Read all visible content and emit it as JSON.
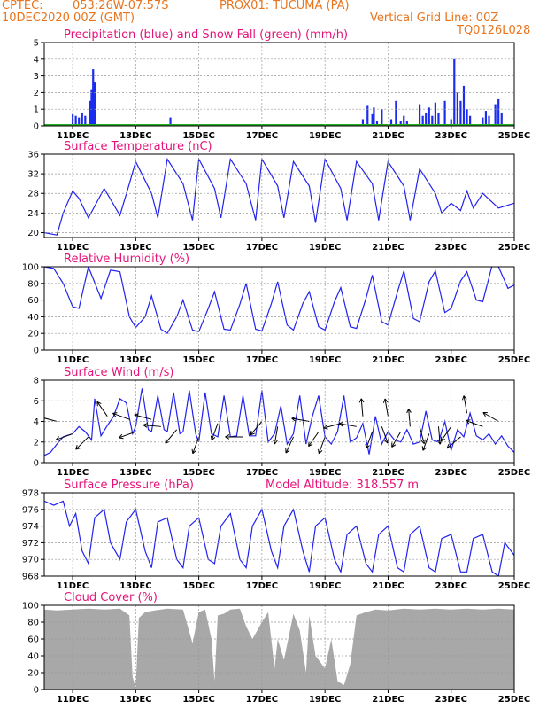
{
  "header": {
    "source": "CPTEC:",
    "coords": "053:26W-07:57S",
    "location": "PROX01: TUCUMA (PA)",
    "run_date": "10DEC2020 00Z (GMT)",
    "grid_note": "Vertical Grid Line: 00Z",
    "model_code": "TQ0126L028"
  },
  "colors": {
    "header_text": "#e8741e",
    "panel_title": "#e5147a",
    "line": "#2222ee",
    "precip": "#1a2cf0",
    "snow": "#22aa22",
    "cloud": "#a8a8a8"
  },
  "chart_data": [
    {
      "type": "bar",
      "title": "Precipitation (blue) and Snow Fall (green) (mm/h)",
      "x_unit": "days since 10DEC2020 00Z",
      "xlim": [
        0.1,
        15.0
      ],
      "ylim": [
        0,
        5
      ],
      "yticks": [
        0,
        1,
        2,
        3,
        4,
        5
      ],
      "xticks": [
        {
          "x": 1,
          "label": "11DEC"
        },
        {
          "x": 3,
          "label": "13DEC"
        },
        {
          "x": 5,
          "label": "15DEC"
        },
        {
          "x": 7,
          "label": "17DEC"
        },
        {
          "x": 9,
          "label": "19DEC"
        },
        {
          "x": 11,
          "label": "21DEC"
        },
        {
          "x": 13,
          "label": "23DEC"
        },
        {
          "x": 15,
          "label": "25DEC"
        }
      ],
      "grid": true,
      "series": [
        {
          "name": "Precipitation",
          "x": [
            1.0,
            1.1,
            1.2,
            1.3,
            1.4,
            1.55,
            1.6,
            1.65,
            1.7,
            4.1,
            10.2,
            10.35,
            10.5,
            10.55,
            10.65,
            10.8,
            11.1,
            11.25,
            11.4,
            11.5,
            11.6,
            12.0,
            12.1,
            12.2,
            12.3,
            12.4,
            12.5,
            12.6,
            12.8,
            13.0,
            13.1,
            13.2,
            13.3,
            13.4,
            13.5,
            13.6,
            14.0,
            14.1,
            14.2,
            14.4,
            14.5,
            14.6
          ],
          "values": [
            0.7,
            0.6,
            0.5,
            0.8,
            0.6,
            1.5,
            2.2,
            3.4,
            2.6,
            0.5,
            0.4,
            1.2,
            0.7,
            1.1,
            0.3,
            1.0,
            0.4,
            1.5,
            0.3,
            0.6,
            0.3,
            1.3,
            0.6,
            0.8,
            1.1,
            0.6,
            1.4,
            0.8,
            1.5,
            0.4,
            4.0,
            2.0,
            1.5,
            2.4,
            1.0,
            0.6,
            0.5,
            0.9,
            0.6,
            1.3,
            1.6,
            0.8
          ]
        },
        {
          "name": "Snow Fall",
          "x": [
            0.1,
            15.0
          ],
          "values": [
            0.05,
            0.05
          ]
        }
      ]
    },
    {
      "type": "line",
      "title": "Surface Temperature (nC)",
      "ylim": [
        19,
        36
      ],
      "yticks": [
        20,
        24,
        28,
        32,
        36
      ],
      "series": [
        {
          "x": [
            0.1,
            0.5,
            0.7,
            1.0,
            1.2,
            1.5,
            2.0,
            2.5,
            2.8,
            3.0,
            3.5,
            3.7,
            4.0,
            4.5,
            4.8,
            5.0,
            5.5,
            5.7,
            6.0,
            6.5,
            6.8,
            7.0,
            7.5,
            7.7,
            8.0,
            8.5,
            8.7,
            9.0,
            9.5,
            9.7,
            10.0,
            10.5,
            10.7,
            11.0,
            11.5,
            11.7,
            12.0,
            12.5,
            12.7,
            13.0,
            13.3,
            13.5,
            13.7,
            14.0,
            14.5,
            15.0
          ],
          "values": [
            20,
            19.5,
            24,
            28.5,
            27,
            23,
            29,
            23.5,
            30,
            34.5,
            28,
            23,
            35,
            30,
            22.5,
            35,
            29,
            23,
            35,
            30,
            22.5,
            35,
            29.5,
            23,
            34.5,
            29.5,
            22,
            35,
            29,
            22.5,
            34.5,
            30,
            22.5,
            34.5,
            29.5,
            22.5,
            33,
            28,
            24,
            26,
            24.5,
            28.5,
            25,
            28,
            25,
            26
          ]
        }
      ]
    },
    {
      "type": "line",
      "title": "Relative Humidity (%)",
      "ylim": [
        0,
        100
      ],
      "yticks": [
        0,
        20,
        40,
        60,
        80,
        100
      ],
      "series": [
        {
          "x": [
            0.1,
            0.4,
            0.7,
            1.0,
            1.2,
            1.5,
            1.9,
            2.2,
            2.5,
            2.8,
            3.0,
            3.3,
            3.5,
            3.8,
            4.0,
            4.3,
            4.5,
            4.8,
            5.0,
            5.3,
            5.5,
            5.8,
            6.0,
            6.3,
            6.5,
            6.8,
            7.0,
            7.3,
            7.5,
            7.8,
            8.0,
            8.3,
            8.5,
            8.8,
            9.0,
            9.3,
            9.5,
            9.8,
            10.0,
            10.3,
            10.5,
            10.8,
            11.0,
            11.3,
            11.5,
            11.8,
            12.0,
            12.3,
            12.5,
            12.8,
            13.0,
            13.3,
            13.5,
            13.8,
            14.0,
            14.3,
            14.5,
            14.8,
            15.0
          ],
          "values": [
            100,
            98,
            80,
            52,
            50,
            100,
            62,
            96,
            94,
            40,
            27,
            40,
            65,
            25,
            20,
            40,
            60,
            24,
            22,
            50,
            70,
            25,
            24,
            55,
            80,
            25,
            23,
            56,
            82,
            30,
            24,
            56,
            70,
            28,
            24,
            58,
            75,
            28,
            26,
            62,
            90,
            34,
            30,
            70,
            95,
            38,
            34,
            82,
            95,
            45,
            50,
            83,
            94,
            60,
            58,
            102,
            100,
            74,
            78
          ]
        }
      ]
    },
    {
      "type": "line",
      "title": "Surface Wind (m/s)",
      "ylim": [
        0,
        8
      ],
      "yticks": [
        0,
        2,
        4,
        6,
        8
      ],
      "series": [
        {
          "x": [
            0.1,
            0.3,
            0.5,
            0.7,
            1.0,
            1.2,
            1.4,
            1.6,
            1.7,
            1.9,
            2.1,
            2.3,
            2.5,
            2.7,
            2.9,
            3.0,
            3.2,
            3.4,
            3.5,
            3.7,
            3.9,
            4.0,
            4.2,
            4.4,
            4.5,
            4.7,
            4.9,
            5.0,
            5.2,
            5.4,
            5.6,
            5.8,
            6.0,
            6.2,
            6.4,
            6.6,
            6.8,
            7.0,
            7.2,
            7.4,
            7.6,
            7.8,
            8.0,
            8.2,
            8.4,
            8.6,
            8.8,
            9.0,
            9.2,
            9.4,
            9.6,
            9.8,
            10.0,
            10.2,
            10.4,
            10.6,
            10.8,
            11.0,
            11.2,
            11.4,
            11.6,
            11.8,
            12.0,
            12.2,
            12.4,
            12.6,
            12.8,
            13.0,
            13.2,
            13.4,
            13.6,
            13.8,
            14.0,
            14.2,
            14.4,
            14.6,
            14.8,
            15.0
          ],
          "values": [
            0.7,
            1.0,
            1.8,
            2.5,
            2.8,
            3.5,
            3.0,
            2.2,
            6.2,
            2.6,
            3.6,
            4.5,
            6.2,
            5.8,
            2.8,
            3.5,
            7.2,
            3.2,
            3.0,
            6.5,
            3.2,
            3.0,
            6.8,
            2.8,
            3.0,
            7.0,
            2.8,
            2.0,
            6.8,
            2.8,
            2.5,
            6.5,
            2.5,
            2.6,
            6.5,
            2.6,
            2.6,
            7.0,
            2.0,
            2.8,
            5.5,
            1.8,
            2.8,
            6.5,
            1.8,
            4.5,
            6.5,
            2.5,
            1.8,
            3.0,
            6.5,
            2.0,
            2.4,
            3.8,
            0.8,
            4.5,
            1.8,
            3.0,
            2.2,
            2.0,
            3.2,
            1.8,
            2.0,
            5.0,
            2.2,
            2.0,
            4.0,
            1.2,
            3.2,
            2.5,
            4.8,
            2.6,
            2.2,
            2.8,
            1.8,
            2.6,
            1.6,
            1.0
          ]
        }
      ]
    },
    {
      "type": "line",
      "title": "Surface Pressure (hPa)",
      "annotation": "Model Altitude: 318.557 m",
      "ylim": [
        968,
        978
      ],
      "yticks": [
        968,
        970,
        972,
        974,
        976,
        978
      ],
      "series": [
        {
          "x": [
            0.1,
            0.4,
            0.7,
            0.9,
            1.1,
            1.3,
            1.5,
            1.7,
            2.0,
            2.2,
            2.5,
            2.7,
            3.0,
            3.3,
            3.5,
            3.7,
            4.0,
            4.3,
            4.5,
            4.7,
            5.0,
            5.3,
            5.5,
            5.7,
            6.0,
            6.3,
            6.5,
            6.7,
            7.0,
            7.3,
            7.5,
            7.7,
            8.0,
            8.3,
            8.5,
            8.7,
            9.0,
            9.3,
            9.5,
            9.7,
            10.0,
            10.3,
            10.5,
            10.7,
            11.0,
            11.3,
            11.5,
            11.7,
            12.0,
            12.3,
            12.5,
            12.7,
            13.0,
            13.3,
            13.5,
            13.7,
            14.0,
            14.3,
            14.5,
            14.7,
            15.0
          ],
          "values": [
            977,
            976.5,
            977,
            974,
            975.5,
            971,
            969.5,
            975,
            976,
            972,
            970,
            974.5,
            976,
            971,
            969,
            974.5,
            975,
            970,
            969,
            974,
            975,
            970,
            969.5,
            974,
            975.5,
            970,
            969,
            974,
            976,
            971,
            969,
            974,
            976,
            971,
            968.5,
            974,
            975,
            970,
            968.5,
            973,
            974,
            969.5,
            968.5,
            973,
            974,
            969,
            968.5,
            973,
            974,
            969,
            968.5,
            972.5,
            973,
            968.5,
            968.5,
            972.5,
            973,
            968.5,
            968,
            972,
            970.5
          ]
        }
      ]
    },
    {
      "type": "area",
      "title": "Cloud Cover (%)",
      "ylim": [
        0,
        100
      ],
      "yticks": [
        0,
        20,
        40,
        60,
        80,
        100
      ],
      "series": [
        {
          "x": [
            0.1,
            0.5,
            1.0,
            1.5,
            2.0,
            2.5,
            2.8,
            2.9,
            3.0,
            3.1,
            3.3,
            3.6,
            4.0,
            4.5,
            4.8,
            5.0,
            5.2,
            5.4,
            5.5,
            5.6,
            5.8,
            6.0,
            6.3,
            6.5,
            6.7,
            7.0,
            7.2,
            7.4,
            7.5,
            7.7,
            8.0,
            8.2,
            8.4,
            8.5,
            8.7,
            9.0,
            9.2,
            9.4,
            9.6,
            9.8,
            10.0,
            10.3,
            10.6,
            11.0,
            11.5,
            12.0,
            12.5,
            13.0,
            13.5,
            14.0,
            14.5,
            15.0
          ],
          "values": [
            95,
            94,
            95,
            96,
            95,
            96,
            88,
            15,
            2,
            85,
            92,
            94,
            96,
            95,
            55,
            92,
            95,
            60,
            10,
            88,
            90,
            95,
            96,
            75,
            60,
            80,
            92,
            25,
            60,
            35,
            90,
            70,
            20,
            88,
            40,
            25,
            60,
            10,
            5,
            30,
            88,
            92,
            95,
            94,
            96,
            95,
            96,
            95,
            96,
            95,
            96,
            95
          ]
        }
      ]
    }
  ],
  "wind_arrows": {
    "x": [
      0.5,
      1.0,
      1.5,
      2.1,
      2.8,
      3.0,
      3.5,
      3.8,
      4.3,
      5.0,
      5.6,
      6.4,
      7.0,
      7.5,
      8.0,
      8.5,
      8.8,
      9.0,
      9.5,
      10.0,
      10.2,
      10.5,
      10.8,
      11.0,
      11.4,
      11.7,
      12.0,
      12.3,
      12.6,
      13.0,
      13.3,
      13.5,
      14.0,
      14.5
    ],
    "y": [
      4,
      2.8,
      2.5,
      4.5,
      4.2,
      3.0,
      4.2,
      3.5,
      3.2,
      2.5,
      3.8,
      2.5,
      4,
      3.5,
      2.5,
      4,
      3.0,
      2.5,
      3.8,
      3.5,
      4.5,
      3.0,
      3.5,
      4.5,
      3.0,
      3.5,
      3.5,
      2.8,
      3.5,
      3.5,
      2.5,
      4.8,
      3.5,
      4.0
    ],
    "angles_deg": [
      165,
      200,
      225,
      125,
      160,
      200,
      165,
      175,
      230,
      250,
      250,
      180,
      230,
      260,
      245,
      170,
      235,
      250,
      195,
      170,
      95,
      250,
      290,
      100,
      240,
      95,
      285,
      250,
      275,
      235,
      220,
      100,
      160,
      150
    ]
  }
}
